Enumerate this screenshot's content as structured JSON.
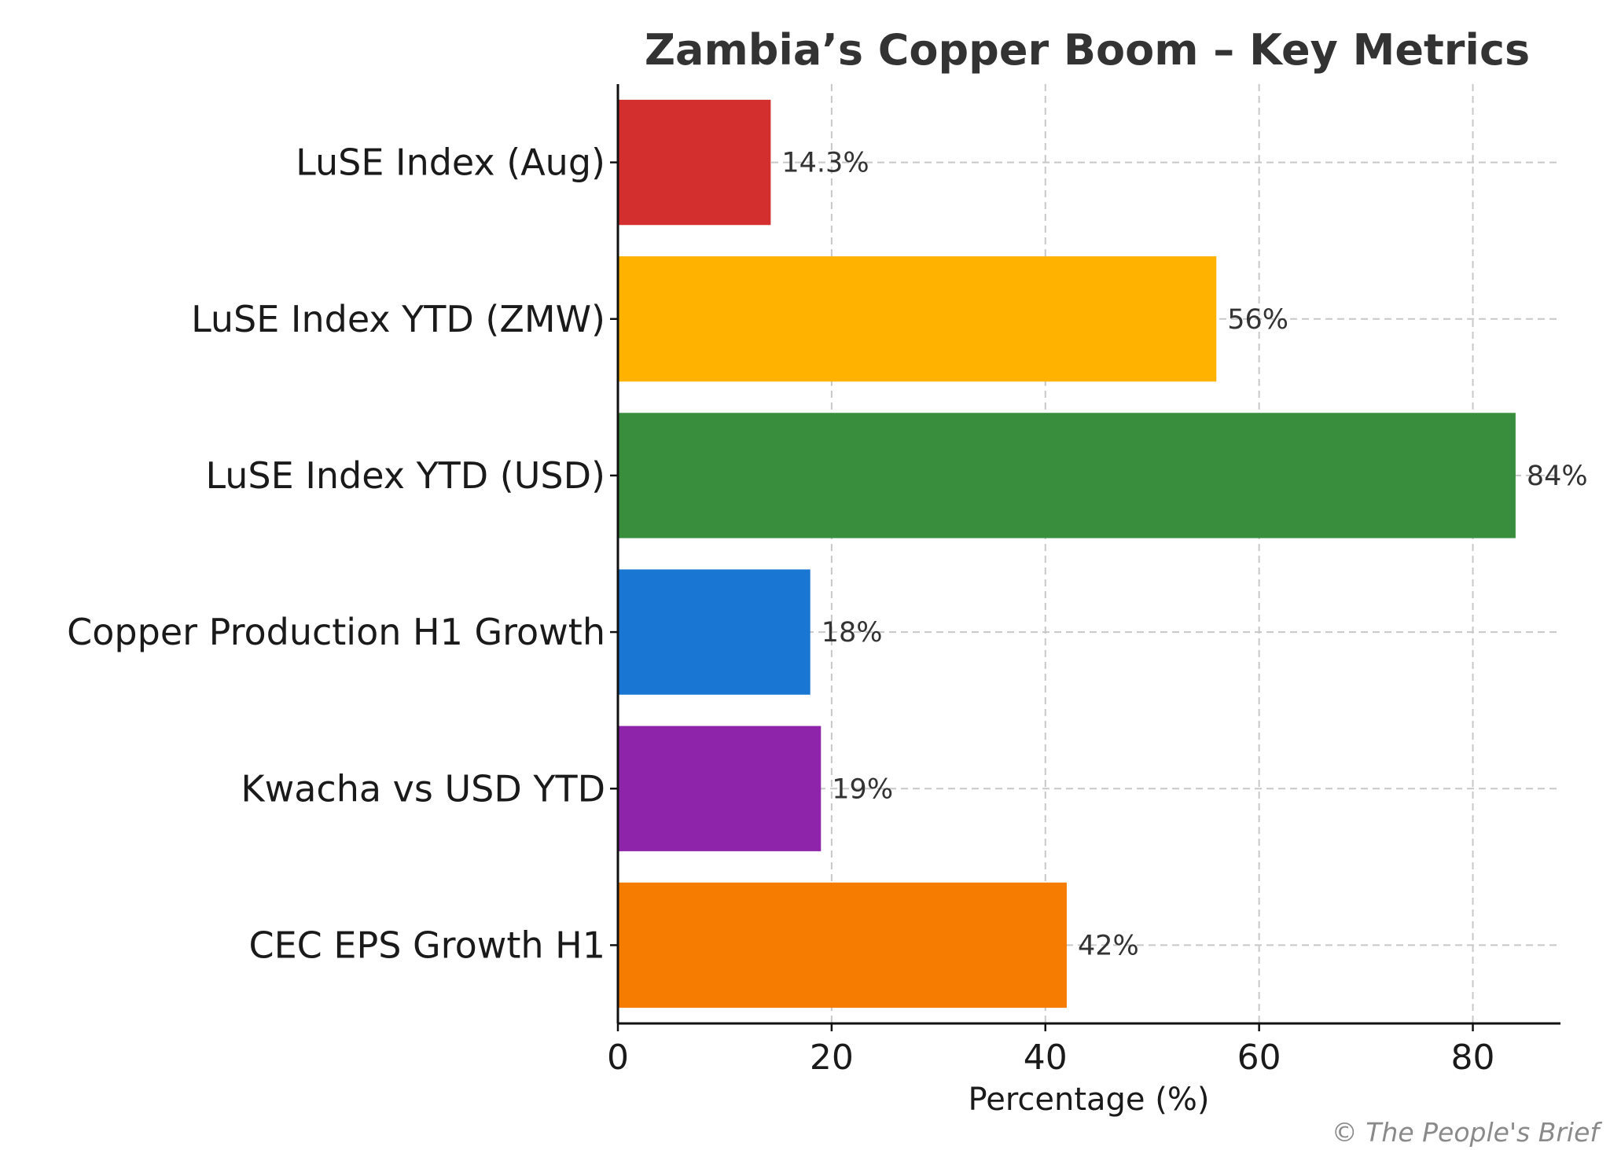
{
  "chart_data": {
    "type": "bar",
    "orientation": "horizontal",
    "title": "Zambia’s Copper Boom – Key Metrics",
    "xlabel": "Percentage (%)",
    "ylabel": "",
    "categories": [
      "LuSE Index (Aug)",
      "LuSE Index YTD (ZMW)",
      "LuSE Index YTD (USD)",
      "Copper Production H1 Growth",
      "Kwacha vs USD YTD",
      "CEC EPS Growth H1"
    ],
    "values": [
      14.3,
      56,
      84,
      18,
      19,
      42
    ],
    "data_labels": [
      "14.3%",
      "56%",
      "84%",
      "18%",
      "19%",
      "42%"
    ],
    "colors": [
      "#d32f2f",
      "#ffb300",
      "#388e3c",
      "#1976d2",
      "#8e24aa",
      "#f57c00"
    ],
    "xlim": [
      0,
      88.2
    ],
    "xticks": [
      0,
      20,
      40,
      60,
      80
    ],
    "xtick_labels": [
      "0",
      "20",
      "40",
      "60",
      "80"
    ],
    "grid": true,
    "legend": "none"
  },
  "credit": "© The People's Brief"
}
